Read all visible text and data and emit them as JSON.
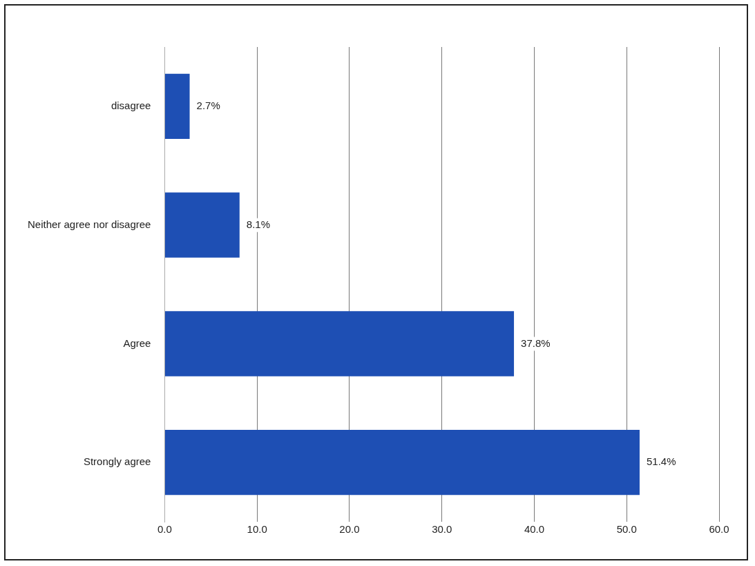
{
  "chart_data": {
    "type": "bar",
    "orientation": "horizontal",
    "categories": [
      "disagree",
      "Neither agree nor disagree",
      "Agree",
      "Strongly agree"
    ],
    "values": [
      2.7,
      8.1,
      37.8,
      51.4
    ],
    "value_labels": [
      "2.7%",
      "8.1%",
      "37.8%",
      "51.4%"
    ],
    "color": "#1e4fb4",
    "xlim": [
      0,
      60
    ],
    "xticks": [
      {
        "value": 0,
        "label": "0.0"
      },
      {
        "value": 10,
        "label": "10.0"
      },
      {
        "value": 20,
        "label": "20.0"
      },
      {
        "value": 30,
        "label": "30.0"
      },
      {
        "value": 40,
        "label": "40.0"
      },
      {
        "value": 50,
        "label": "50.0"
      },
      {
        "value": 60,
        "label": "60.0"
      }
    ],
    "grid": "x"
  }
}
